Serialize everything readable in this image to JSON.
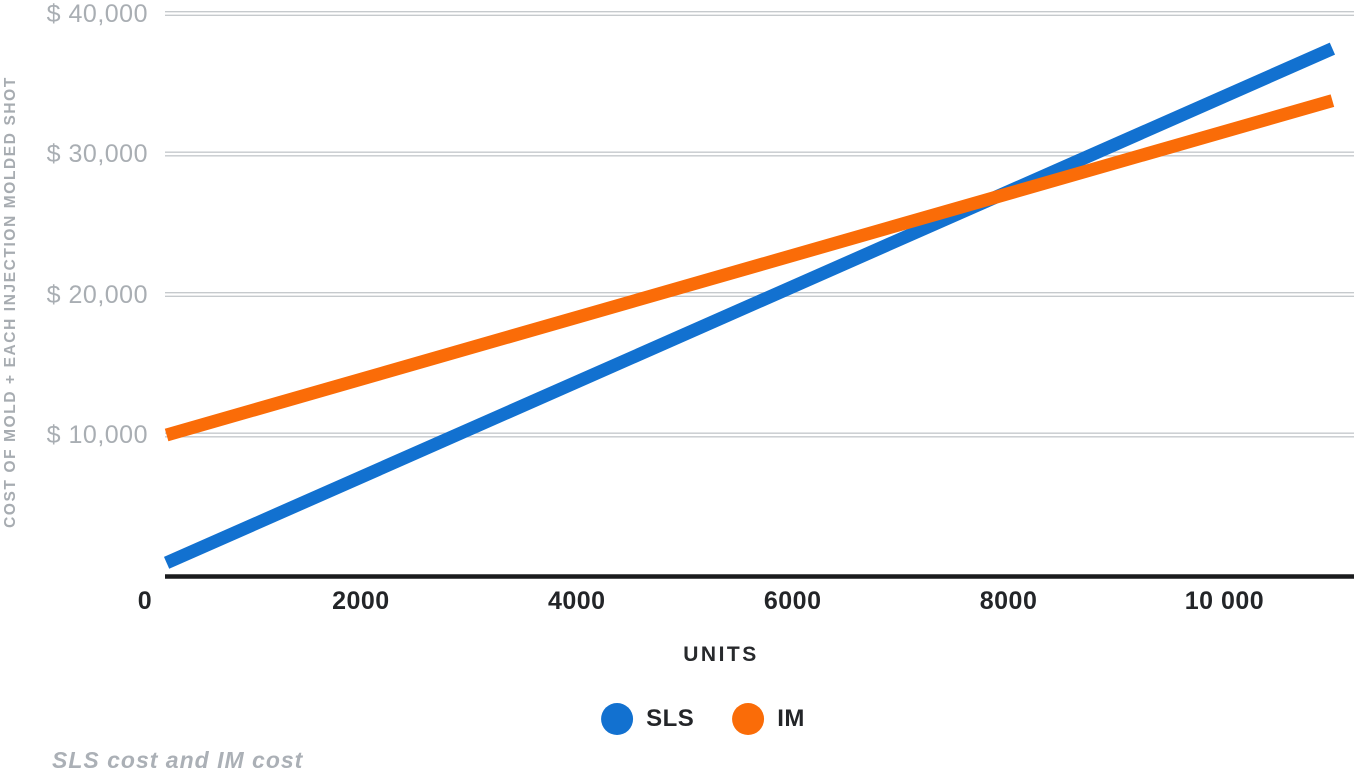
{
  "chart_data": {
    "type": "line",
    "title": "",
    "xlabel": "UNITS",
    "ylabel": "COST OF MOLD + EACH INJECTION MOLDED SHOT",
    "caption": "SLS cost and IM cost",
    "xlim": [
      0,
      11200
    ],
    "ylim": [
      0,
      40000
    ],
    "grid": true,
    "legend_position": "bottom-center",
    "x_ticks": [
      {
        "value": 0,
        "label": "0"
      },
      {
        "value": 2000,
        "label": "2000"
      },
      {
        "value": 4000,
        "label": "4000"
      },
      {
        "value": 6000,
        "label": "6000"
      },
      {
        "value": 8000,
        "label": "8000"
      },
      {
        "value": 10000,
        "label": "10 000"
      }
    ],
    "y_ticks": [
      {
        "value": 10000,
        "label": "$ 10,000"
      },
      {
        "value": 20000,
        "label": "$ 20,000"
      },
      {
        "value": 30000,
        "label": "$ 30,000"
      },
      {
        "value": 40000,
        "label": "$ 40,000"
      }
    ],
    "series": [
      {
        "name": "SLS",
        "color": "#1271d0",
        "x": [
          200,
          11000
        ],
        "values": [
          900,
          37500
        ]
      },
      {
        "name": "IM",
        "color": "#fa6c08",
        "x": [
          200,
          11000
        ],
        "values": [
          10000,
          33800
        ]
      }
    ],
    "colors": {
      "axis": "#1a1b1d",
      "gridline": "#c6cacd",
      "y_tick_text": "#a9aeb3",
      "x_tick_text": "#232528",
      "caption_text": "#8b9197"
    }
  }
}
